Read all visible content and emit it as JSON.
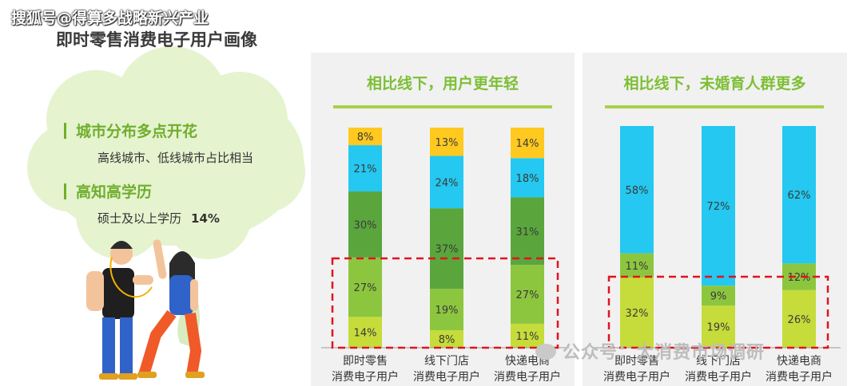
{
  "watermark_top": "搜狐号@得算多战略新兴产业",
  "page_title": "即时零售消费电子用户画像",
  "info": {
    "item1_heading": "城市分布多点开花",
    "item1_text": "高线城市、低线城市占比相当",
    "item2_heading": "高知高学历",
    "item2_text": "硕士及以上学历",
    "item2_value": "14%"
  },
  "watermark_bottom": "公众号：大消费市场调研",
  "colors": {
    "yellow": "#ffc91f",
    "cyan": "#24c8f0",
    "dark_green": "#5aa63d",
    "mid_green": "#8cc63f",
    "yellow_green": "#c5dc3a",
    "accent": "#7dbf35",
    "dash": "#e0141e"
  },
  "chart_data": [
    {
      "type": "bar",
      "stacked": true,
      "title": "相比线下，用户更年轻",
      "categories": [
        [
          "即时零售",
          "消费电子用户"
        ],
        [
          "线下门店",
          "消费电子用户"
        ],
        [
          "快递电商",
          "消费电子用户"
        ]
      ],
      "series": [
        {
          "color": "#c5dc3a",
          "values": [
            14,
            8,
            11
          ],
          "labels": [
            "14%",
            "8%",
            "11%"
          ]
        },
        {
          "color": "#8cc63f",
          "values": [
            27,
            19,
            27
          ],
          "labels": [
            "27%",
            "19%",
            "27%"
          ]
        },
        {
          "color": "#5aa63d",
          "values": [
            30,
            37,
            31
          ],
          "labels": [
            "30%",
            "37%",
            "31%"
          ]
        },
        {
          "color": "#24c8f0",
          "values": [
            21,
            24,
            18
          ],
          "labels": [
            "21%",
            "24%",
            "18%"
          ]
        },
        {
          "color": "#ffc91f",
          "values": [
            8,
            13,
            14
          ],
          "labels": [
            "8%",
            "13%",
            "14%"
          ]
        }
      ]
    },
    {
      "type": "bar",
      "stacked": true,
      "title": "相比线下，未婚育人群更多",
      "categories": [
        [
          "即时零售",
          "消费电子用户"
        ],
        [
          "线下门店",
          "消费电子用户"
        ],
        [
          "快递电商",
          "消费电子用户"
        ]
      ],
      "series": [
        {
          "color": "#c5dc3a",
          "values": [
            32,
            19,
            26
          ],
          "labels": [
            "32%",
            "19%",
            "26%"
          ]
        },
        {
          "color": "#8cc63f",
          "values": [
            11,
            9,
            12
          ],
          "labels": [
            "11%",
            "9%",
            "12%"
          ]
        },
        {
          "color": "#24c8f0",
          "values": [
            58,
            72,
            62
          ],
          "labels": [
            "58%",
            "72%",
            "62%"
          ]
        }
      ]
    }
  ]
}
